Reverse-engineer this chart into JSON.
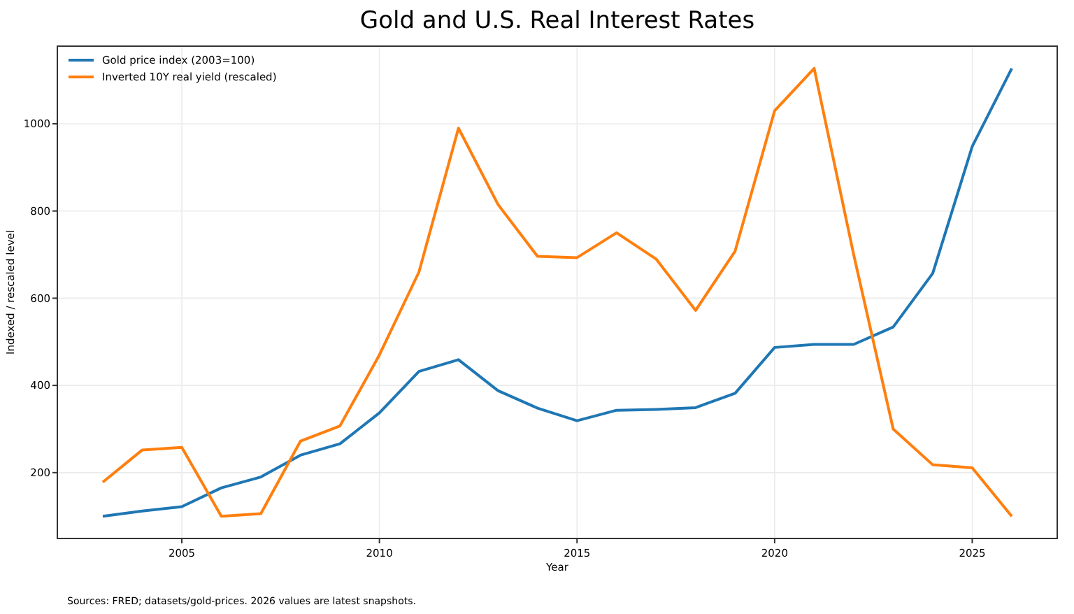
{
  "chart_data": {
    "type": "line",
    "title": "Gold and U.S. Real Interest Rates",
    "xlabel": "Year",
    "ylabel": "Indexed / rescaled level",
    "x": [
      2003,
      2004,
      2005,
      2006,
      2007,
      2008,
      2009,
      2010,
      2011,
      2012,
      2013,
      2014,
      2015,
      2016,
      2017,
      2018,
      2019,
      2020,
      2021,
      2022,
      2023,
      2024,
      2025,
      2026
    ],
    "series": [
      {
        "name": "Gold price index (2003=100)",
        "color": "#1f77b4",
        "values": [
          100,
          112,
          122,
          165,
          190,
          240,
          266,
          337,
          432,
          459,
          388,
          348,
          319,
          343,
          345,
          349,
          382,
          487,
          494,
          494,
          534,
          657,
          948,
          1127
        ]
      },
      {
        "name": "Inverted 10Y real yield (rescaled)",
        "color": "#ff7f0e",
        "values": [
          178,
          252,
          258,
          100,
          106,
          272,
          307,
          470,
          660,
          990,
          815,
          696,
          693,
          750,
          690,
          572,
          708,
          1030,
          1127,
          700,
          300,
          218,
          211,
          100
        ]
      }
    ],
    "xlim": [
      2001.85,
      2027.15
    ],
    "ylim": [
      49,
      1178
    ],
    "xticks": [
      2005,
      2010,
      2015,
      2020,
      2025
    ],
    "yticks": [
      200,
      400,
      600,
      800,
      1000
    ],
    "grid": true,
    "legend": "top left",
    "line_style": "solid",
    "marker": "none",
    "annotations": [
      "Sources: FRED; datasets/gold-prices. 2026 values are latest snapshots."
    ]
  }
}
